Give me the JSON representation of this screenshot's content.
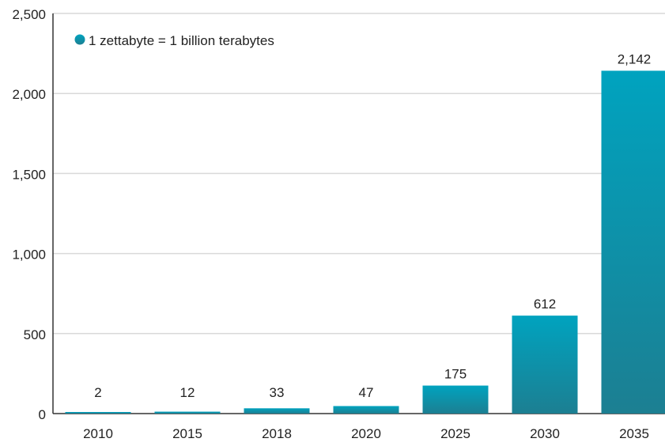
{
  "chart_data": {
    "type": "bar",
    "title": "",
    "xlabel": "",
    "ylabel": "",
    "categories": [
      "2010",
      "2015",
      "2018",
      "2020",
      "2025",
      "2030",
      "2035"
    ],
    "values": [
      2,
      12,
      33,
      47,
      175,
      612,
      2142
    ],
    "data_labels": [
      "2",
      "12",
      "33",
      "47",
      "175",
      "612",
      "2,142"
    ],
    "ylim": [
      0,
      2500
    ],
    "yticks": [
      0,
      500,
      1000,
      1500,
      2000,
      2500
    ],
    "ytick_labels": [
      "0",
      "500",
      "1,000",
      "1,500",
      "2,000",
      "2,500"
    ],
    "grid": true,
    "legend": {
      "placement": "top-left",
      "entries": [
        {
          "label": "1 zettabyte = 1 billion terabytes"
        }
      ]
    },
    "colors": {
      "bar_top": "#00a3bf",
      "bar_bottom": "#1c7f92",
      "grid": "#d9d9d9",
      "axis": "#333333",
      "text": "#222222"
    }
  }
}
